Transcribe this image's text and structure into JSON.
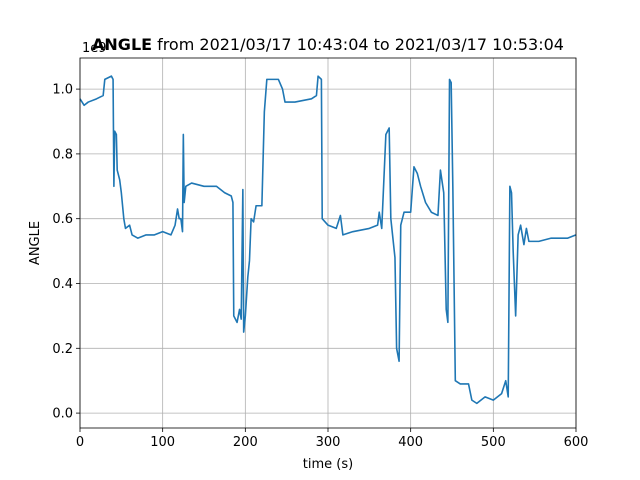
{
  "chart_data": {
    "type": "line",
    "title_parts": [
      "ANGLE",
      "from 2021/03/17 10:43:04 to 2021/03/17 10:53:04"
    ],
    "x_label": "time (s)",
    "y_label": "ANGLE",
    "y_offset_label": "1e9",
    "xlim": [
      0,
      600
    ],
    "xticks": [
      0,
      100,
      200,
      300,
      400,
      500,
      600
    ],
    "ylim": [
      -0.046,
      1.096
    ],
    "yticks": [
      {
        "value": 0,
        "label": "0.0"
      },
      0.2,
      0.4,
      0.6,
      0.8,
      {
        "value": 1,
        "label": "1.0"
      }
    ],
    "grid": true,
    "series": [
      {
        "name": "ANGLE",
        "color": "#1f77b4",
        "x": [
          0,
          5,
          10,
          20,
          28,
          30,
          38,
          40,
          41,
          42,
          44,
          45,
          48,
          50,
          53,
          55,
          60,
          63,
          70,
          80,
          90,
          100,
          110,
          115,
          118,
          120,
          122,
          124,
          125,
          126,
          128,
          135,
          150,
          165,
          175,
          183,
          185,
          186,
          190,
          193,
          195,
          197,
          198,
          200,
          203,
          205,
          207,
          210,
          213,
          220,
          223,
          226,
          240,
          245,
          248,
          260,
          280,
          286,
          288,
          292,
          293,
          300,
          310,
          315,
          318,
          330,
          350,
          360,
          362,
          365,
          370,
          374,
          376,
          381,
          383,
          386,
          388,
          392,
          400,
          404,
          408,
          412,
          418,
          425,
          433,
          436,
          440,
          443,
          445,
          447,
          449,
          451,
          454,
          460,
          470,
          474,
          480,
          490,
          500,
          510,
          515,
          518,
          520,
          522,
          524,
          527,
          530,
          533,
          537,
          540,
          543,
          555,
          570,
          590,
          600
        ],
        "values": [
          0.97,
          0.95,
          0.96,
          0.97,
          0.98,
          1.03,
          1.04,
          1.03,
          0.7,
          0.87,
          0.86,
          0.75,
          0.72,
          0.68,
          0.6,
          0.57,
          0.58,
          0.55,
          0.54,
          0.55,
          0.55,
          0.56,
          0.55,
          0.58,
          0.63,
          0.6,
          0.6,
          0.56,
          0.86,
          0.65,
          0.7,
          0.71,
          0.7,
          0.7,
          0.68,
          0.67,
          0.65,
          0.3,
          0.28,
          0.32,
          0.29,
          0.69,
          0.25,
          0.3,
          0.42,
          0.47,
          0.6,
          0.59,
          0.64,
          0.64,
          0.93,
          1.03,
          1.03,
          1.0,
          0.96,
          0.96,
          0.97,
          0.98,
          1.04,
          1.03,
          0.6,
          0.58,
          0.57,
          0.61,
          0.55,
          0.56,
          0.57,
          0.58,
          0.62,
          0.57,
          0.86,
          0.88,
          0.6,
          0.48,
          0.2,
          0.16,
          0.58,
          0.62,
          0.62,
          0.76,
          0.74,
          0.7,
          0.65,
          0.62,
          0.61,
          0.75,
          0.68,
          0.32,
          0.28,
          1.03,
          1.02,
          0.7,
          0.1,
          0.09,
          0.09,
          0.04,
          0.03,
          0.05,
          0.04,
          0.06,
          0.1,
          0.05,
          0.7,
          0.68,
          0.5,
          0.3,
          0.55,
          0.58,
          0.52,
          0.57,
          0.53,
          0.53,
          0.54,
          0.54,
          0.55
        ]
      }
    ]
  }
}
